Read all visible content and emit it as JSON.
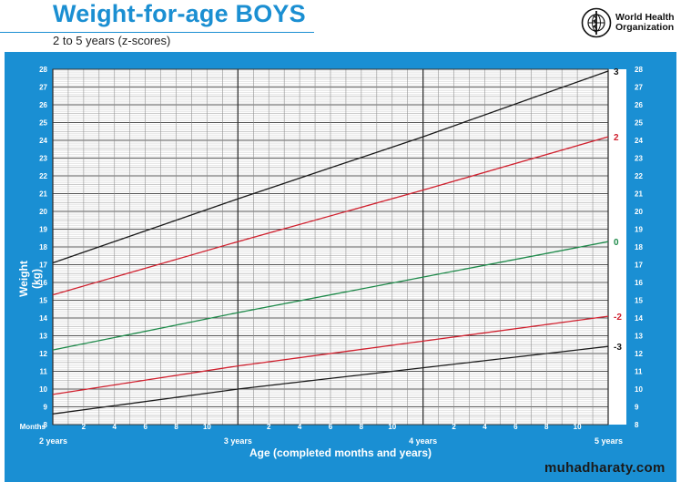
{
  "header": {
    "title": "Weight-for-age BOYS",
    "subtitle": "2 to 5 years (z-scores)",
    "org_line1": "World Health",
    "org_line2": "Organization"
  },
  "watermark": "muhadharaty.com",
  "colors": {
    "title_blue": "#1b8fd2",
    "panel_blue": "#1a8fd3",
    "sd3": "#1a1a1a",
    "sd2": "#d0202e",
    "sd0": "#1e8a4a"
  },
  "chart_data": {
    "type": "line",
    "ylabel": "Weight (kg)",
    "xlabel": "Age (completed months and years)",
    "x_axis_title_left": "Months",
    "xlim": [
      24,
      60
    ],
    "ylim": [
      8,
      28
    ],
    "grid": true,
    "y_ticks": [
      8,
      9,
      10,
      11,
      12,
      13,
      14,
      15,
      16,
      17,
      18,
      19,
      20,
      21,
      22,
      23,
      24,
      25,
      26,
      27,
      28
    ],
    "x_month_ticks": [
      {
        "x": 26,
        "label": "2"
      },
      {
        "x": 28,
        "label": "4"
      },
      {
        "x": 30,
        "label": "6"
      },
      {
        "x": 32,
        "label": "8"
      },
      {
        "x": 34,
        "label": "10"
      },
      {
        "x": 38,
        "label": "2"
      },
      {
        "x": 40,
        "label": "4"
      },
      {
        "x": 42,
        "label": "6"
      },
      {
        "x": 44,
        "label": "8"
      },
      {
        "x": 46,
        "label": "10"
      },
      {
        "x": 50,
        "label": "2"
      },
      {
        "x": 52,
        "label": "4"
      },
      {
        "x": 54,
        "label": "6"
      },
      {
        "x": 56,
        "label": "8"
      },
      {
        "x": 58,
        "label": "10"
      }
    ],
    "x_year_ticks": [
      {
        "x": 24,
        "label": "2 years"
      },
      {
        "x": 36,
        "label": "3 years"
      },
      {
        "x": 48,
        "label": "4 years"
      },
      {
        "x": 60,
        "label": "5 years"
      }
    ],
    "series": [
      {
        "name": "3",
        "color": "#1a1a1a",
        "x": [
          24,
          36,
          48,
          60
        ],
        "values": [
          17.1,
          20.7,
          24.2,
          27.9
        ]
      },
      {
        "name": "2",
        "color": "#d0202e",
        "x": [
          24,
          36,
          48,
          60
        ],
        "values": [
          15.3,
          18.3,
          21.2,
          24.2
        ]
      },
      {
        "name": "0",
        "color": "#1e8a4a",
        "x": [
          24,
          36,
          48,
          60
        ],
        "values": [
          12.2,
          14.3,
          16.3,
          18.3
        ]
      },
      {
        "name": "-2",
        "color": "#d0202e",
        "x": [
          24,
          36,
          48,
          60
        ],
        "values": [
          9.7,
          11.3,
          12.7,
          14.1
        ]
      },
      {
        "name": "-3",
        "color": "#1a1a1a",
        "x": [
          24,
          36,
          48,
          60
        ],
        "values": [
          8.6,
          10.0,
          11.2,
          12.4
        ]
      }
    ]
  }
}
